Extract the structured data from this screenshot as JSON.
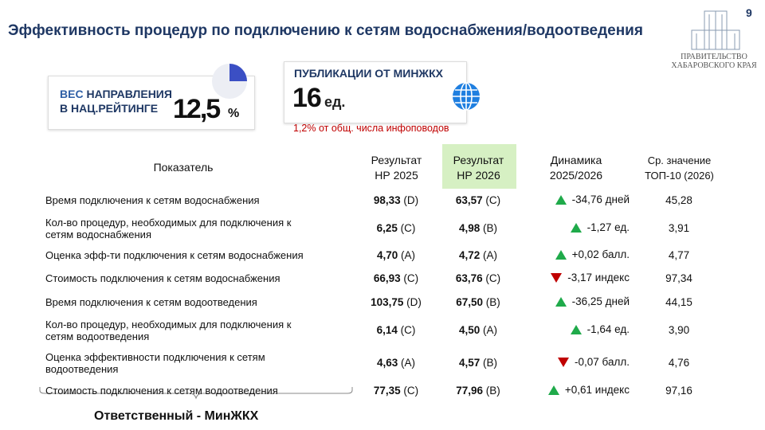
{
  "page_number": "9",
  "title": "Эффективность процедур по подключению к сетям водоснабжения/водоотведения",
  "logo": {
    "line1": "ПРАВИТЕЛЬСТВО",
    "line2": "ХАБАРОВСКОГО КРАЯ"
  },
  "weight_card": {
    "label_accent": "ВЕС",
    "label_rest": "НАПРАВЛЕНИЯ",
    "label_line2": "В НАЦ.РЕЙТИНГЕ",
    "value": "12,5",
    "unit": "%"
  },
  "publications_card": {
    "title": "ПУБЛИКАЦИИ ОТ МИНЖКХ",
    "value": "16",
    "unit": "ед.",
    "note": "1,2% от общ. числа инфоповодов"
  },
  "table": {
    "headers": [
      [
        "Показатель"
      ],
      [
        "Результат",
        "НР 2025"
      ],
      [
        "Результат",
        "НР 2026"
      ],
      [
        "Динамика",
        "2025/2026"
      ],
      [
        "Ср. значение",
        "ТОП-10 (2026)"
      ]
    ],
    "rows": [
      {
        "indicator": "Время подключения к сетям водоснабжения",
        "r2025": "98,33",
        "g2025": "(D)",
        "r2026": "63,57",
        "g2026": "(C)",
        "trend": "up",
        "dynamics": "-34,76 дней",
        "top10": "45,28"
      },
      {
        "indicator": "Кол-во процедур, необходимых для подключения к сетям водоснабжения",
        "r2025": "6,25",
        "g2025": "(C)",
        "r2026": "4,98",
        "g2026": "(B)",
        "trend": "up",
        "dynamics": "-1,27 ед.",
        "top10": "3,91"
      },
      {
        "indicator": "Оценка эфф-ти подключения к сетям водоснабжения",
        "r2025": "4,70",
        "g2025": "(A)",
        "r2026": "4,72",
        "g2026": "(A)",
        "trend": "up",
        "dynamics": "+0,02 балл.",
        "top10": "4,77"
      },
      {
        "indicator": "Стоимость подключения к сетям водоснабжения",
        "r2025": "66,93",
        "g2025": "(C)",
        "r2026": "63,76",
        "g2026": "(C)",
        "trend": "down",
        "dynamics": "-3,17 индекс",
        "top10": "97,34"
      },
      {
        "indicator": "Время подключения к сетям водоотведения",
        "r2025": "103,75",
        "g2025": "(D)",
        "r2026": "67,50",
        "g2026": "(B)",
        "trend": "up",
        "dynamics": "-36,25 дней",
        "top10": "44,15"
      },
      {
        "indicator": "Кол-во процедур, необходимых для подключения к сетям водоотведения",
        "r2025": "6,14",
        "g2025": "(C)",
        "r2026": "4,50",
        "g2026": "(A)",
        "trend": "up",
        "dynamics": "-1,64 ед.",
        "top10": "3,90"
      },
      {
        "indicator": "Оценка эффективности подключения к сетям водоотведения",
        "r2025": "4,63",
        "g2025": "(A)",
        "r2026": "4,57",
        "g2026": "(B)",
        "trend": "down",
        "dynamics": "-0,07 балл.",
        "top10": "4,76"
      },
      {
        "indicator": "Стоимость подключения к сетям водоотведения",
        "r2025": "77,35",
        "g2025": "(C)",
        "r2026": "77,96",
        "g2026": "(B)",
        "trend": "up",
        "dynamics": "+0,61 индекс",
        "top10": "97,16"
      }
    ]
  },
  "footer": "Ответственный - МинЖКХ"
}
